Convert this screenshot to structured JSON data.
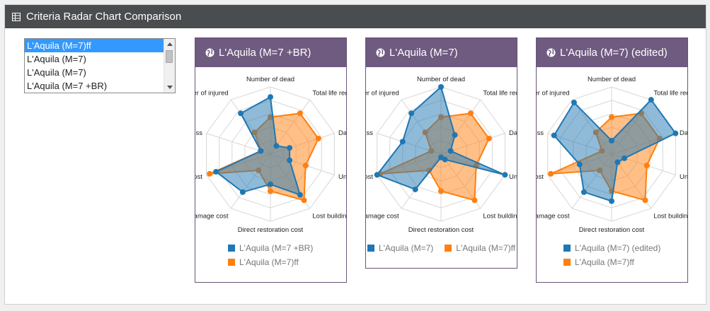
{
  "panel": {
    "title": "Criteria Radar Chart Comparison",
    "icon": "table-icon"
  },
  "listbox": {
    "options": [
      "L'Aquila (M=7)ff",
      "L'Aquila (M=7)",
      "L'Aquila (M=7)",
      "L'Aquila (M=7 +BR)"
    ],
    "selected_index": 0
  },
  "axes": [
    "Number of dead",
    "Total life reduction cost",
    "Damaged road segments",
    "Unsafe buildings",
    "Lost buildings",
    "Direct restoration cost",
    "Indirect damage cost",
    "Direct damage cost",
    "Number of homeless",
    "Number of injured"
  ],
  "colors": {
    "blue": "#1f77b4",
    "orange": "#ff7f0e"
  },
  "cards": [
    {
      "title": "L'Aquila (M=7 +BR)",
      "legend_layout": "stacked",
      "series": [
        {
          "name": "L'Aquila (M=7 +BR)",
          "color": "#1f77b4",
          "values": [
            0.85,
            0.15,
            0.3,
            0.3,
            0.75,
            0.45,
            0.7,
            0.85,
            0.15,
            0.75
          ]
        },
        {
          "name": "L'Aquila (M=7)ff",
          "color": "#ff7f0e",
          "values": [
            0.55,
            0.75,
            0.75,
            0.55,
            0.85,
            0.55,
            0.3,
            0.95,
            0.15,
            0.4
          ]
        }
      ]
    },
    {
      "title": "L'Aquila (M=7)",
      "legend_layout": "inline",
      "series": [
        {
          "name": "L'Aquila (M=7)",
          "color": "#1f77b4",
          "values": [
            1.0,
            0.35,
            0.15,
            1.0,
            0.1,
            0.05,
            0.65,
            1.0,
            0.6,
            0.75
          ]
        },
        {
          "name": "L'Aquila (M=7)ff",
          "color": "#ff7f0e",
          "values": [
            0.55,
            0.75,
            0.75,
            0.55,
            0.85,
            0.55,
            0.3,
            0.95,
            0.15,
            0.4
          ]
        }
      ]
    },
    {
      "title": "L'Aquila (M=7) (edited)",
      "legend_layout": "stacked",
      "series": [
        {
          "name": "L'Aquila (M=7) (edited)",
          "color": "#1f77b4",
          "values": [
            0.2,
            1.0,
            1.0,
            0.2,
            0.15,
            0.7,
            0.7,
            0.5,
            0.9,
            0.95
          ]
        },
        {
          "name": "L'Aquila (M=7)ff",
          "color": "#ff7f0e",
          "values": [
            0.55,
            0.75,
            0.75,
            0.55,
            0.85,
            0.55,
            0.3,
            0.95,
            0.15,
            0.4
          ]
        }
      ]
    }
  ],
  "chart_data": [
    {
      "type": "radar",
      "title": "L'Aquila (M=7 +BR)",
      "categories": [
        "Number of dead",
        "Total life reduction cost",
        "Damaged road segments",
        "Unsafe buildings",
        "Lost buildings",
        "Direct restoration cost",
        "Indirect damage cost",
        "Direct damage cost",
        "Number of homeless",
        "Number of injured"
      ],
      "series": [
        {
          "name": "L'Aquila (M=7 +BR)",
          "values": [
            0.85,
            0.15,
            0.3,
            0.3,
            0.75,
            0.45,
            0.7,
            0.85,
            0.15,
            0.75
          ]
        },
        {
          "name": "L'Aquila (M=7)ff",
          "values": [
            0.55,
            0.75,
            0.75,
            0.55,
            0.85,
            0.55,
            0.3,
            0.95,
            0.15,
            0.4
          ]
        }
      ]
    },
    {
      "type": "radar",
      "title": "L'Aquila (M=7)",
      "categories": [
        "Number of dead",
        "Total life reduction cost",
        "Damaged road segments",
        "Unsafe buildings",
        "Lost buildings",
        "Direct restoration cost",
        "Indirect damage cost",
        "Direct damage cost",
        "Number of homeless",
        "Number of injured"
      ],
      "series": [
        {
          "name": "L'Aquila (M=7)",
          "values": [
            1.0,
            0.35,
            0.15,
            1.0,
            0.1,
            0.05,
            0.65,
            1.0,
            0.6,
            0.75
          ]
        },
        {
          "name": "L'Aquila (M=7)ff",
          "values": [
            0.55,
            0.75,
            0.75,
            0.55,
            0.85,
            0.55,
            0.3,
            0.95,
            0.15,
            0.4
          ]
        }
      ]
    },
    {
      "type": "radar",
      "title": "L'Aquila (M=7) (edited)",
      "categories": [
        "Number of dead",
        "Total life reduction cost",
        "Damaged road segments",
        "Unsafe buildings",
        "Lost buildings",
        "Direct restoration cost",
        "Indirect damage cost",
        "Direct damage cost",
        "Number of homeless",
        "Number of injured"
      ],
      "series": [
        {
          "name": "L'Aquila (M=7) (edited)",
          "values": [
            0.2,
            1.0,
            1.0,
            0.2,
            0.15,
            0.7,
            0.7,
            0.5,
            0.9,
            0.95
          ]
        },
        {
          "name": "L'Aquila (M=7)ff",
          "values": [
            0.55,
            0.75,
            0.75,
            0.55,
            0.85,
            0.55,
            0.3,
            0.95,
            0.15,
            0.4
          ]
        }
      ]
    }
  ]
}
